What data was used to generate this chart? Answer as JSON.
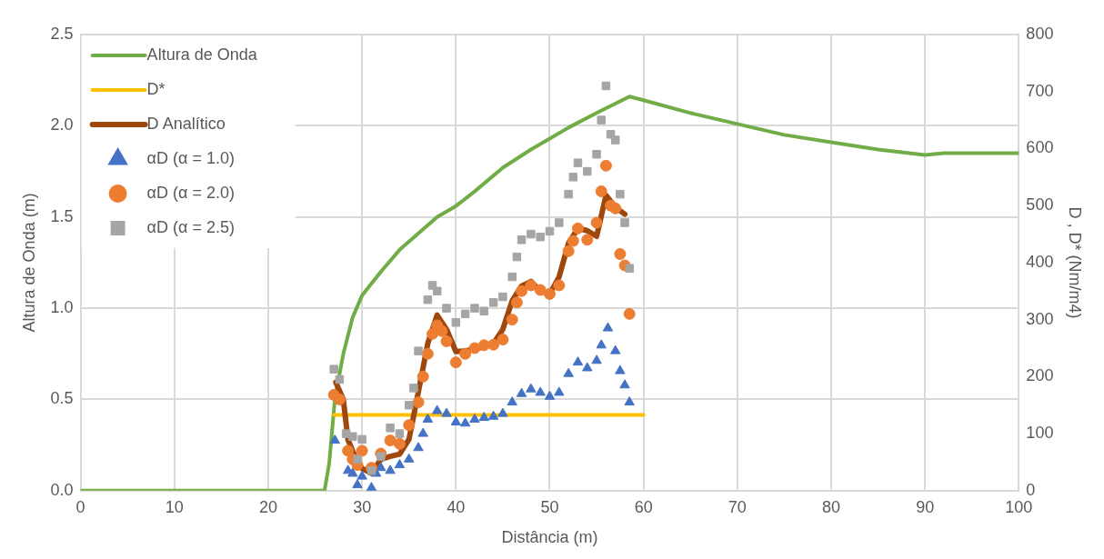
{
  "chart_data": {
    "type": "line",
    "xlabel": "Distância (m)",
    "ylabel": "Altura de Onda (m)",
    "y2label": "D , D* (Nm/m4)",
    "xlim": [
      0,
      100
    ],
    "xticks": [
      0,
      10,
      20,
      30,
      40,
      50,
      60,
      70,
      80,
      90,
      100
    ],
    "ylim": [
      0,
      2.5
    ],
    "yticks": [
      {
        "value": 0,
        "label": "0.0"
      },
      {
        "value": 0.5,
        "label": "0.5"
      },
      {
        "value": 1,
        "label": "1.0"
      },
      {
        "value": 1.5,
        "label": "1.5"
      },
      {
        "value": 2,
        "label": "2.0"
      },
      {
        "value": 2.5,
        "label": "2.5"
      }
    ],
    "y2lim": [
      0,
      800
    ],
    "y2ticks": [
      0,
      100,
      200,
      300,
      400,
      500,
      600,
      700,
      800
    ],
    "grid": true,
    "legend": "top left",
    "series": [
      {
        "name": "Altura de Onda",
        "color": "#70ad47",
        "marker": "none",
        "x": [
          0,
          26,
          26.5,
          27.1,
          28,
          29,
          30,
          32,
          34,
          36,
          38,
          40,
          42,
          45,
          48,
          50,
          52,
          55,
          58.5,
          60,
          65,
          70,
          75,
          80,
          85,
          90,
          92,
          95,
          100
        ],
        "values": [
          0,
          0,
          0.15,
          0.5,
          0.75,
          0.95,
          1.07,
          1.2,
          1.32,
          1.41,
          1.5,
          1.56,
          1.64,
          1.77,
          1.87,
          1.93,
          1.99,
          2.07,
          2.16,
          2.14,
          2.07,
          2.01,
          1.95,
          1.91,
          1.87,
          1.84,
          1.85,
          1.85,
          1.85
        ]
      },
      {
        "name": "D*",
        "axis": "y2",
        "color": "#ffc000",
        "marker": "none",
        "x": [
          27,
          60
        ],
        "values": [
          133,
          133
        ]
      },
      {
        "name": "D Analítico",
        "axis": "y2",
        "color": "#9e480e",
        "marker": "none",
        "x": [
          27.2,
          28,
          28.5,
          29.5,
          30,
          31,
          32,
          33,
          34,
          35,
          36,
          37,
          38,
          39,
          40,
          41,
          42,
          43,
          44,
          45,
          46,
          47,
          48,
          49,
          50,
          51,
          52,
          53,
          54,
          55,
          56,
          57,
          58
        ],
        "values": [
          190,
          160,
          89,
          50,
          39,
          30,
          55,
          60,
          64,
          90,
          173,
          258,
          308,
          283,
          244,
          245,
          249,
          252,
          258,
          283,
          333,
          359,
          367,
          350,
          345,
          375,
          434,
          460,
          456,
          446,
          518,
          497,
          485
        ]
      },
      {
        "name": "αD (α = 1.0)",
        "type": "scatter",
        "axis": "y2",
        "color": "#4472c4",
        "marker": "triangle",
        "x": [
          27.1,
          28.5,
          29,
          29.5,
          30,
          31,
          31.5,
          32,
          33,
          34,
          35,
          36,
          36.5,
          37,
          38,
          39,
          40,
          41,
          42,
          43,
          44,
          45,
          46,
          47,
          48,
          49,
          50,
          51,
          52,
          53,
          54,
          55,
          55.5,
          56.2,
          57,
          57.5,
          58,
          58.5
        ],
        "values": [
          88,
          35,
          30,
          10,
          25,
          5,
          30,
          40,
          35,
          45,
          55,
          75,
          100,
          125,
          140,
          135,
          120,
          118,
          125,
          128,
          130,
          135,
          155,
          170,
          178,
          172,
          165,
          172,
          205,
          225,
          215,
          228,
          255,
          285,
          245,
          210,
          185,
          155
        ]
      },
      {
        "name": "αD (α = 2.0)",
        "type": "scatter",
        "axis": "y2",
        "color": "#ed7d31",
        "marker": "circle",
        "x": [
          27,
          27.6,
          28.5,
          29,
          29.5,
          30,
          31,
          32,
          33,
          34,
          35,
          36,
          36.5,
          37,
          37.5,
          38,
          38.5,
          39,
          40,
          41,
          42,
          43,
          44,
          45,
          46,
          46.5,
          47,
          48,
          49,
          50,
          51,
          52,
          52.5,
          53,
          54,
          55,
          55.5,
          56,
          56.5,
          57,
          57.5,
          58,
          58.5
        ],
        "values": [
          168,
          160,
          70,
          55,
          45,
          70,
          40,
          65,
          88,
          82,
          115,
          155,
          200,
          240,
          275,
          290,
          280,
          262,
          225,
          240,
          250,
          255,
          256,
          265,
          300,
          330,
          350,
          360,
          352,
          345,
          360,
          420,
          438,
          460,
          440,
          470,
          525,
          570,
          500,
          495,
          415,
          395,
          310
        ]
      },
      {
        "name": "αD (α = 2.5)",
        "type": "scatter",
        "axis": "y2",
        "color": "#a5a5a5",
        "marker": "square",
        "x": [
          27,
          27.6,
          28.3,
          29,
          29.5,
          30,
          31,
          32,
          33,
          34,
          35,
          35.5,
          36,
          37,
          37.5,
          38,
          39,
          40,
          41,
          42,
          43,
          44,
          45,
          46,
          46.5,
          47,
          48,
          49,
          50,
          51,
          52,
          52.5,
          53,
          54,
          55,
          55.5,
          56,
          56.5,
          57,
          57.5,
          58,
          58.5
        ],
        "values": [
          213,
          195,
          100,
          95,
          55,
          90,
          35,
          60,
          110,
          100,
          150,
          180,
          245,
          335,
          360,
          350,
          320,
          295,
          310,
          320,
          315,
          330,
          340,
          375,
          410,
          440,
          450,
          445,
          455,
          470,
          520,
          550,
          575,
          560,
          590,
          650,
          710,
          625,
          615,
          520,
          470,
          390
        ]
      }
    ]
  }
}
